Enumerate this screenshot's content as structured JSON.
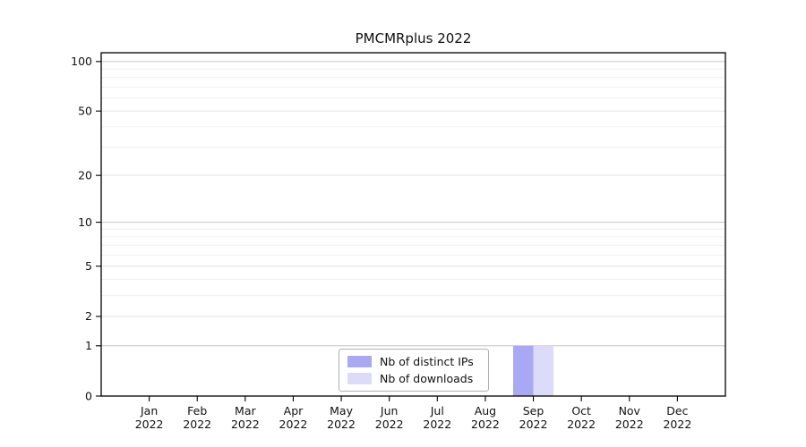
{
  "chart_data": {
    "type": "bar",
    "title": "PMCMRplus 2022",
    "categories": [
      {
        "month": "Jan",
        "year": "2022"
      },
      {
        "month": "Feb",
        "year": "2022"
      },
      {
        "month": "Mar",
        "year": "2022"
      },
      {
        "month": "Apr",
        "year": "2022"
      },
      {
        "month": "May",
        "year": "2022"
      },
      {
        "month": "Jun",
        "year": "2022"
      },
      {
        "month": "Jul",
        "year": "2022"
      },
      {
        "month": "Aug",
        "year": "2022"
      },
      {
        "month": "Sep",
        "year": "2022"
      },
      {
        "month": "Oct",
        "year": "2022"
      },
      {
        "month": "Nov",
        "year": "2022"
      },
      {
        "month": "Dec",
        "year": "2022"
      }
    ],
    "series": [
      {
        "name": "Nb of distinct IPs",
        "color": "#a8a8f4",
        "values": [
          0,
          0,
          0,
          0,
          0,
          0,
          0,
          0,
          1,
          0,
          0,
          0
        ]
      },
      {
        "name": "Nb of downloads",
        "color": "#dcdcfa",
        "values": [
          0,
          0,
          0,
          0,
          0,
          0,
          0,
          0,
          1,
          0,
          0,
          0
        ]
      }
    ],
    "y_axis": {
      "scale": "log1p",
      "major_ticks": [
        0,
        1,
        2,
        5,
        10,
        20,
        50,
        100
      ],
      "minor_ticks": [
        3,
        4,
        6,
        7,
        8,
        9,
        30,
        40,
        60,
        70,
        80,
        90
      ],
      "decade_ticks": [
        1,
        10,
        100
      ],
      "ylim": [
        0,
        113
      ]
    },
    "xlabel": "",
    "ylabel": "",
    "grid": "horizontal-major-and-minor",
    "legend_position": "lower center",
    "colors": {
      "axis": "#000000",
      "text": "#111111",
      "gridline_decade": "#c6c6c6",
      "gridline_major": "#e4e4e4",
      "gridline_minor": "#f0f0f0",
      "legend_border": "#b0b0b0"
    }
  }
}
